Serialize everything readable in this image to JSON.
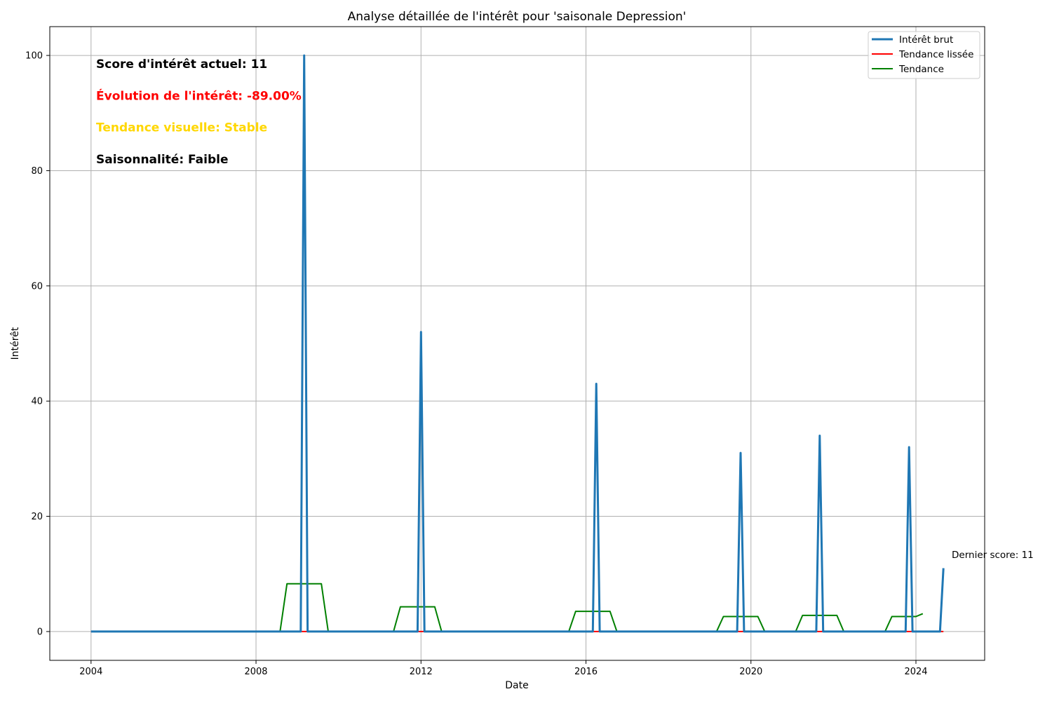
{
  "chart_data": {
    "type": "line",
    "title": "Analyse détaillée de l'intérêt pour 'saisonale Depression'",
    "xlabel": "Date",
    "ylabel": "Intérêt",
    "xlim": [
      "2003-01-01",
      "2025-09-01"
    ],
    "ylim": [
      -5,
      105
    ],
    "x_ticks": [
      "2004",
      "2008",
      "2012",
      "2016",
      "2020",
      "2024"
    ],
    "y_ticks": [
      "0",
      "20",
      "40",
      "60",
      "80",
      "100"
    ],
    "grid": true,
    "legend_position": "top-right",
    "info_texts": [
      {
        "text": "Score d'intérêt actuel: 11",
        "color": "#000000"
      },
      {
        "text": "Évolution de l'intérêt: -89.00%",
        "color": "#ff0000"
      },
      {
        "text": "Tendance visuelle: Stable",
        "color": "#ffd700"
      },
      {
        "text": "Saisonnalité: Faible",
        "color": "#000000"
      }
    ],
    "annotation": "Dernier score: 11",
    "series": [
      {
        "name": "Intérêt brut",
        "color": "#1f77b4",
        "points": [
          [
            "2004-01-01",
            0
          ],
          [
            "2009-02-01",
            0
          ],
          [
            "2009-03-01",
            100
          ],
          [
            "2009-04-01",
            0
          ],
          [
            "2011-12-01",
            0
          ],
          [
            "2012-01-01",
            52
          ],
          [
            "2012-02-01",
            0
          ],
          [
            "2016-03-01",
            0
          ],
          [
            "2016-04-01",
            43
          ],
          [
            "2016-05-01",
            0
          ],
          [
            "2019-09-01",
            0
          ],
          [
            "2019-10-01",
            31
          ],
          [
            "2019-11-01",
            0
          ],
          [
            "2021-08-01",
            0
          ],
          [
            "2021-09-01",
            34
          ],
          [
            "2021-10-01",
            0
          ],
          [
            "2023-10-01",
            0
          ],
          [
            "2023-11-01",
            32
          ],
          [
            "2023-12-01",
            0
          ],
          [
            "2024-08-01",
            0
          ],
          [
            "2024-09-01",
            11
          ]
        ]
      },
      {
        "name": "Tendance lissée",
        "color": "#ff0000",
        "points": [
          [
            "2004-01-01",
            0
          ],
          [
            "2024-09-01",
            0
          ]
        ]
      },
      {
        "name": "Tendance",
        "color": "#008000",
        "points": [
          [
            "2004-06-01",
            0
          ],
          [
            "2008-08-01",
            0
          ],
          [
            "2008-10-01",
            8.3
          ],
          [
            "2009-08-01",
            8.3
          ],
          [
            "2009-10-01",
            0
          ],
          [
            "2011-05-01",
            0
          ],
          [
            "2011-07-01",
            4.3
          ],
          [
            "2012-05-01",
            4.3
          ],
          [
            "2012-07-01",
            0
          ],
          [
            "2015-08-01",
            0
          ],
          [
            "2015-10-01",
            3.5
          ],
          [
            "2016-08-01",
            3.5
          ],
          [
            "2016-10-01",
            0
          ],
          [
            "2019-03-01",
            0
          ],
          [
            "2019-05-01",
            2.6
          ],
          [
            "2020-03-01",
            2.6
          ],
          [
            "2020-05-01",
            0
          ],
          [
            "2021-02-01",
            0
          ],
          [
            "2021-04-01",
            2.8
          ],
          [
            "2022-02-01",
            2.8
          ],
          [
            "2022-04-01",
            0
          ],
          [
            "2023-04-01",
            0
          ],
          [
            "2023-06-01",
            2.6
          ],
          [
            "2024-01-01",
            2.6
          ],
          [
            "2024-03-01",
            3.1
          ]
        ]
      }
    ]
  }
}
